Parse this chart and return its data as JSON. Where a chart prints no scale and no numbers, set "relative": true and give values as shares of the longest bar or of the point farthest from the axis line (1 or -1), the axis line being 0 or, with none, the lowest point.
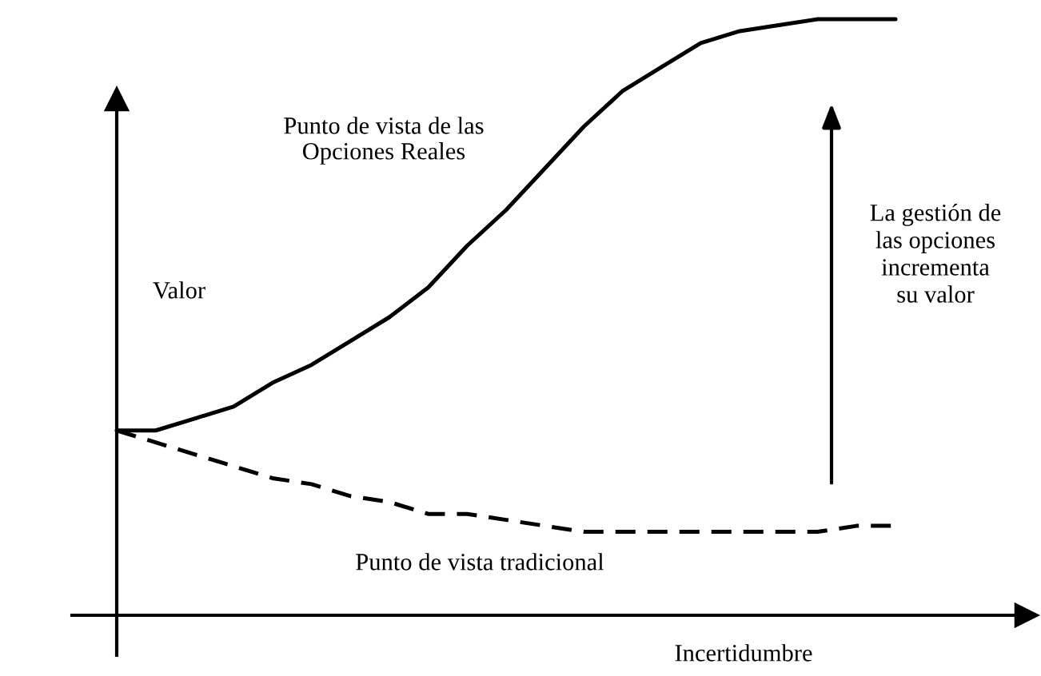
{
  "chart_data": {
    "type": "line",
    "relative": true,
    "xlabel": "Incertidumbre",
    "ylabel": "Valor",
    "legend": false,
    "marker": "none",
    "categories": [
      null,
      null,
      null,
      null,
      null,
      null,
      null,
      null,
      null,
      null,
      null,
      null,
      null,
      null,
      null,
      null,
      null,
      null,
      null,
      null,
      null
    ],
    "series": [
      {
        "name": "Punto de vista de las\nOpciones Reales",
        "color": "#000000",
        "line_style": "solid",
        "values": [
          0.31,
          0.31,
          0.33,
          0.35,
          0.39,
          0.42,
          0.46,
          0.5,
          0.55,
          0.62,
          0.68,
          0.75,
          0.82,
          0.88,
          0.92,
          0.96,
          0.98,
          0.99,
          1.0,
          1.0,
          1.0
        ]
      },
      {
        "name": "Punto de vista tradicional",
        "color": "#000000",
        "line_style": "dashed",
        "values": [
          0.31,
          0.29,
          0.27,
          0.25,
          0.23,
          0.22,
          0.2,
          0.19,
          0.17,
          0.17,
          0.16,
          0.15,
          0.14,
          0.14,
          0.14,
          0.14,
          0.14,
          0.14,
          0.14,
          0.15,
          0.15
        ]
      }
    ],
    "annotations": [
      "La gestión de\nlas opciones\nincrementa\nsu valor"
    ]
  }
}
